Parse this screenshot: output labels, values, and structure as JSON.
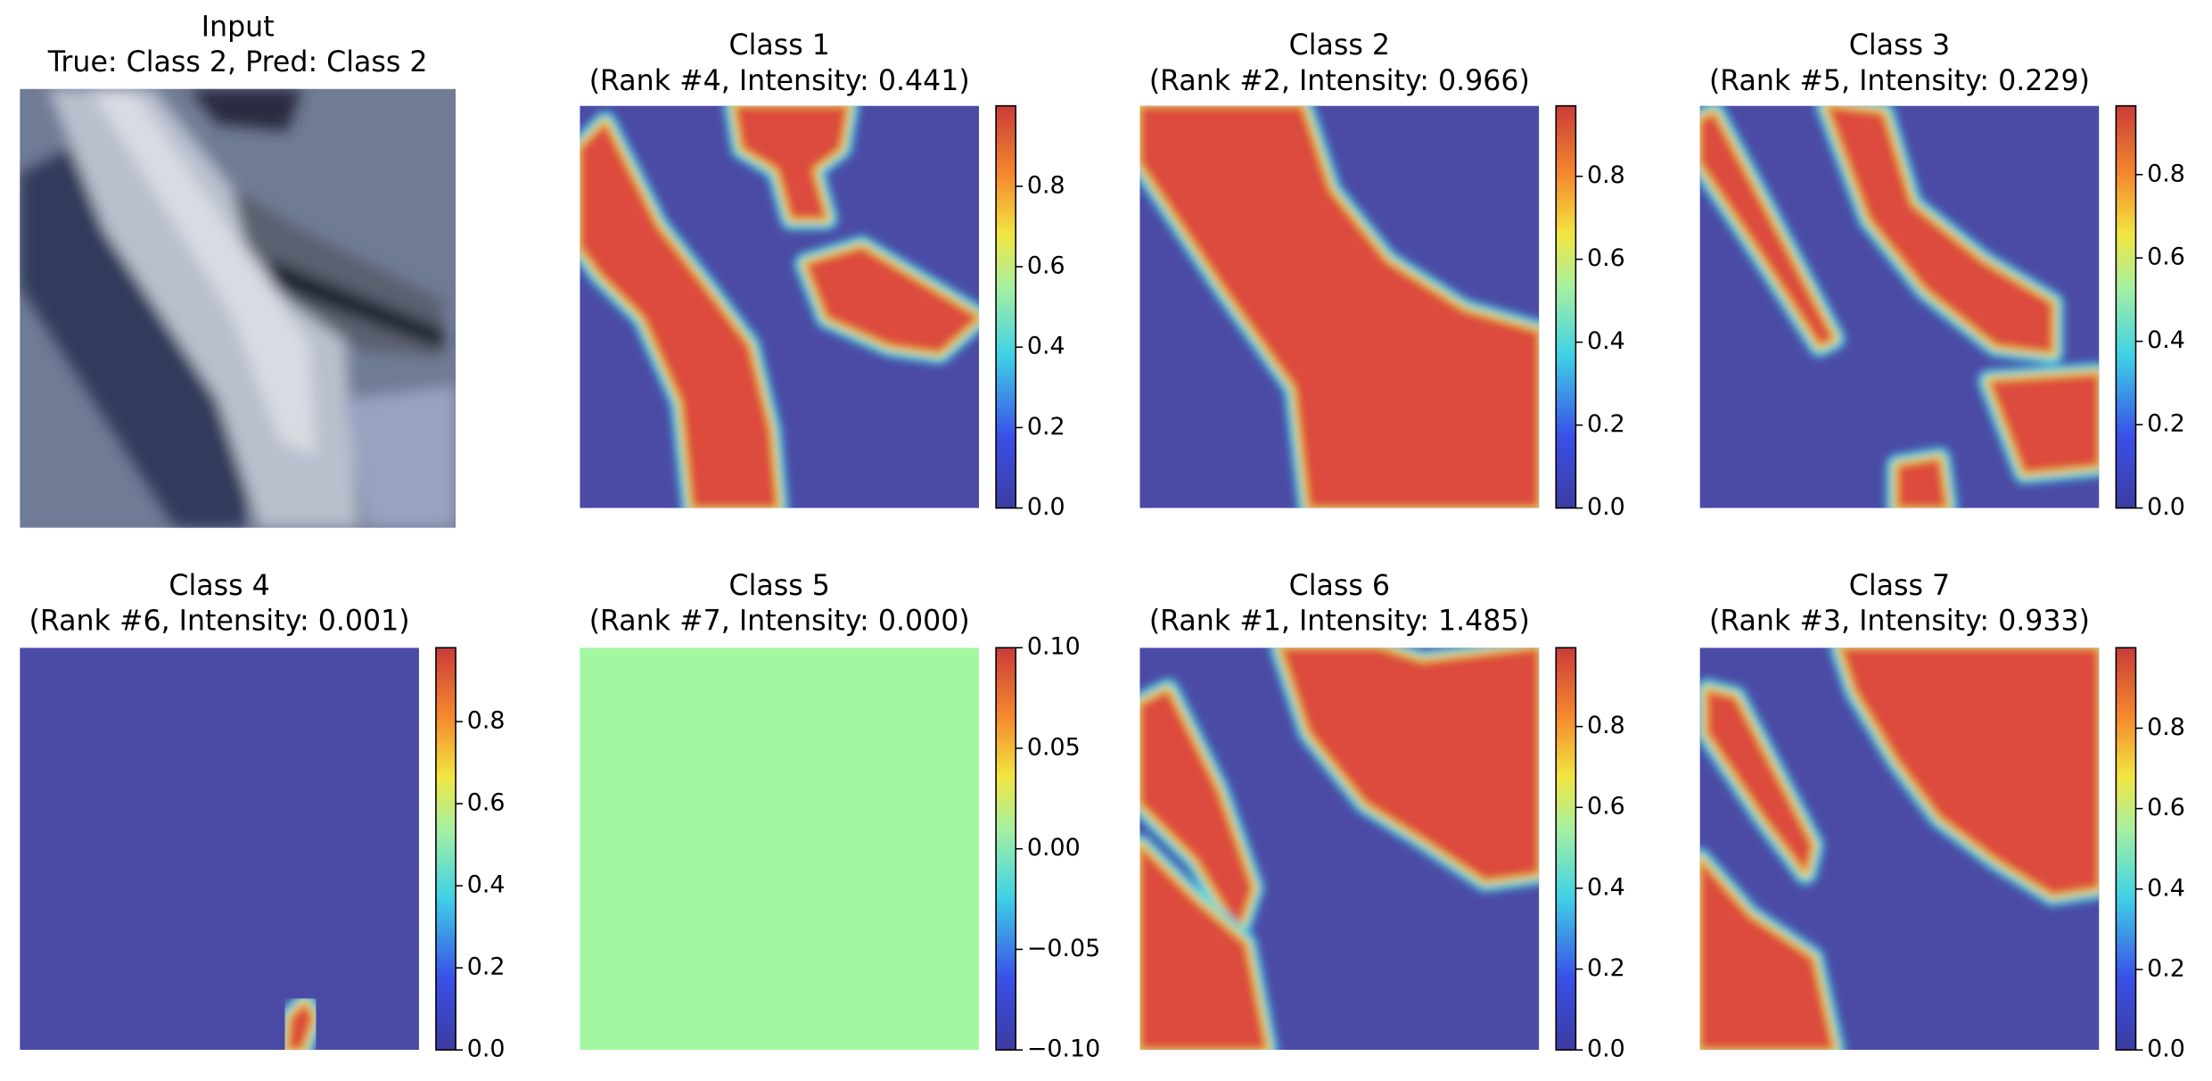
{
  "chart_data": [
    {
      "type": "image",
      "title": "Input",
      "subtitle": "True: Class 2, Pred: Class 2"
    },
    {
      "type": "heatmap",
      "title": "Class 1",
      "subtitle": "(Rank #4, Intensity: 0.441)",
      "ylim": [
        0,
        1.0
      ],
      "yticks": [
        {
          "value": 0,
          "label": "0.0"
        },
        0.2,
        0.4,
        0.6,
        0.8
      ]
    },
    {
      "type": "heatmap",
      "title": "Class 2",
      "subtitle": "(Rank #2, Intensity: 0.966)",
      "ylim": [
        0,
        0.97
      ],
      "yticks": [
        {
          "value": 0,
          "label": "0.0"
        },
        0.2,
        0.4,
        0.6,
        0.8
      ]
    },
    {
      "type": "heatmap",
      "title": "Class 3",
      "subtitle": "(Rank #5, Intensity: 0.229)",
      "ylim": [
        0,
        0.965
      ],
      "yticks": [
        {
          "value": 0,
          "label": "0.0"
        },
        0.2,
        0.4,
        0.6,
        0.8
      ]
    },
    {
      "type": "heatmap",
      "title": "Class 4",
      "subtitle": "(Rank #6, Intensity: 0.001)",
      "ylim": [
        0,
        0.98
      ],
      "yticks": [
        {
          "value": 0,
          "label": "0.0"
        },
        0.2,
        0.4,
        0.6,
        0.8
      ]
    },
    {
      "type": "heatmap",
      "title": "Class 5",
      "subtitle": "(Rank #7, Intensity: 0.000)",
      "ylim": [
        -0.1,
        0.1
      ],
      "yticks": [
        {
          "value": -0.1,
          "label": "−0.10"
        },
        {
          "value": -0.05,
          "label": "−0.05"
        },
        {
          "value": 0,
          "label": "0.00"
        },
        0.05,
        {
          "value": 0.1,
          "label": "0.10"
        }
      ]
    },
    {
      "type": "heatmap",
      "title": "Class 6",
      "subtitle": "(Rank #1, Intensity: 1.485)",
      "ylim": [
        0,
        0.995
      ],
      "yticks": [
        {
          "value": 0,
          "label": "0.0"
        },
        0.2,
        0.4,
        0.6,
        0.8
      ]
    },
    {
      "type": "heatmap",
      "title": "Class 7",
      "subtitle": "(Rank #3, Intensity: 0.933)",
      "ylim": [
        0,
        1.0
      ],
      "yticks": [
        {
          "value": 0,
          "label": "0.0"
        },
        0.2,
        0.4,
        0.6,
        0.8
      ]
    }
  ]
}
